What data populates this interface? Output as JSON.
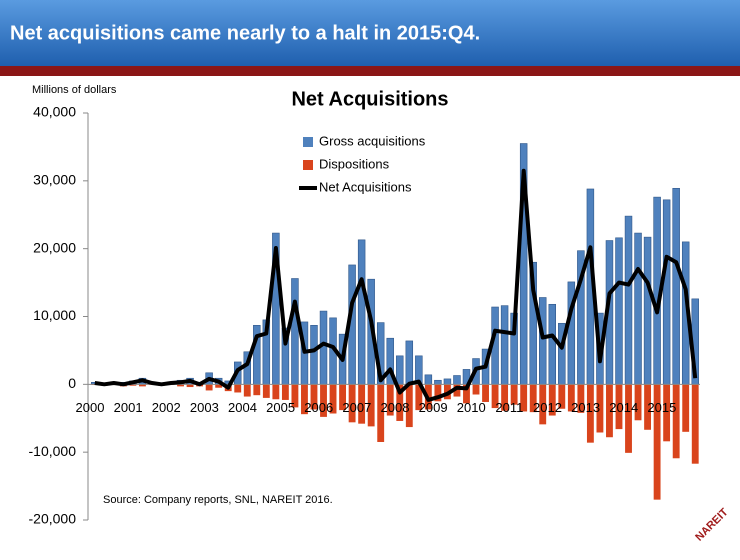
{
  "header": {
    "title": "Net acquisitions came nearly to a halt in 2015:Q4."
  },
  "logo": "NAREIT",
  "chart_data": {
    "type": "bar",
    "title": "Net Acquisitions",
    "y_label": "Millions of dollars",
    "note": "Source: Company reports, SNL, NAREIT 2016.",
    "categories": [
      "2000",
      null,
      null,
      null,
      "2001",
      null,
      null,
      null,
      "2002",
      null,
      null,
      null,
      "2003",
      null,
      null,
      null,
      "2004",
      null,
      null,
      null,
      "2005",
      null,
      null,
      null,
      "2006",
      null,
      null,
      null,
      "2007",
      null,
      null,
      null,
      "2008",
      null,
      null,
      null,
      "2009",
      null,
      null,
      null,
      "2010",
      null,
      null,
      null,
      "2011",
      null,
      null,
      null,
      "2012",
      null,
      null,
      null,
      "2013",
      null,
      null,
      null,
      "2014",
      null,
      null,
      null,
      "2015",
      null,
      null,
      null
    ],
    "series": [
      {
        "name": "Gross acquisitions",
        "color": "#4f81bd",
        "kind": "bar",
        "values": [
          300,
          200,
          300,
          300,
          500,
          900,
          300,
          200,
          300,
          600,
          900,
          300,
          1700,
          900,
          500,
          3300,
          4800,
          8700,
          9500,
          22300,
          8300,
          15600,
          9200,
          8700,
          10800,
          9800,
          7400,
          17600,
          21300,
          15500,
          9100,
          6800,
          4200,
          6400,
          4200,
          1400,
          600,
          800,
          1300,
          2200,
          3800,
          5200,
          11400,
          11600,
          10500,
          35500,
          18000,
          12800,
          11800,
          9000,
          15100,
          19700,
          28800,
          10500,
          21200,
          21600,
          24800,
          22300,
          21700,
          27600,
          27200,
          28900,
          21000,
          12600
        ]
      },
      {
        "name": "Dispositions",
        "color": "#d9441c",
        "kind": "bar",
        "values": [
          -100,
          -200,
          -100,
          -300,
          -200,
          -300,
          -100,
          -200,
          -100,
          -300,
          -400,
          -300,
          -900,
          -500,
          -1000,
          -1200,
          -1800,
          -1600,
          -2000,
          -2200,
          -2300,
          -3400,
          -4400,
          -3700,
          -4800,
          -4300,
          -3800,
          -5600,
          -5800,
          -6200,
          -8500,
          -4600,
          -5400,
          -6300,
          -3800,
          -3700,
          -2500,
          -2200,
          -1800,
          -2800,
          -1500,
          -2600,
          -3500,
          -3900,
          -3000,
          -4000,
          -4100,
          -5900,
          -4600,
          -3600,
          -4000,
          -4200,
          -8600,
          -7100,
          -7800,
          -6600,
          -10100,
          -5300,
          -6700,
          -17000,
          -8400,
          -10900,
          -7000,
          -11700
        ]
      },
      {
        "name": "Net Acquisitions",
        "color": "#000000",
        "kind": "line",
        "values": [
          200,
          0,
          200,
          0,
          300,
          600,
          200,
          0,
          200,
          300,
          500,
          0,
          800,
          400,
          -500,
          2100,
          3000,
          7100,
          7500,
          20100,
          6000,
          12200,
          4800,
          5000,
          6000,
          5500,
          3600,
          12000,
          15500,
          9300,
          600,
          2200,
          -1200,
          100,
          400,
          -2300,
          -1900,
          -1400,
          -500,
          -600,
          2300,
          2600,
          7900,
          7700,
          7500,
          31500,
          13900,
          6900,
          7200,
          5400,
          11100,
          15500,
          20200,
          3400,
          13400,
          15000,
          14700,
          17000,
          15000,
          10600,
          18800,
          18000,
          14000,
          900
        ]
      }
    ],
    "ylim": [
      -20000,
      40000
    ],
    "yticks": [
      {
        "value": -20000,
        "label": "-20,000"
      },
      {
        "value": -10000,
        "label": "-10,000"
      },
      0,
      {
        "value": 10000,
        "label": "10,000"
      },
      {
        "value": 20000,
        "label": "20,000"
      },
      {
        "value": 30000,
        "label": "30,000"
      },
      {
        "value": 40000,
        "label": "40,000"
      }
    ],
    "legend": "top"
  }
}
